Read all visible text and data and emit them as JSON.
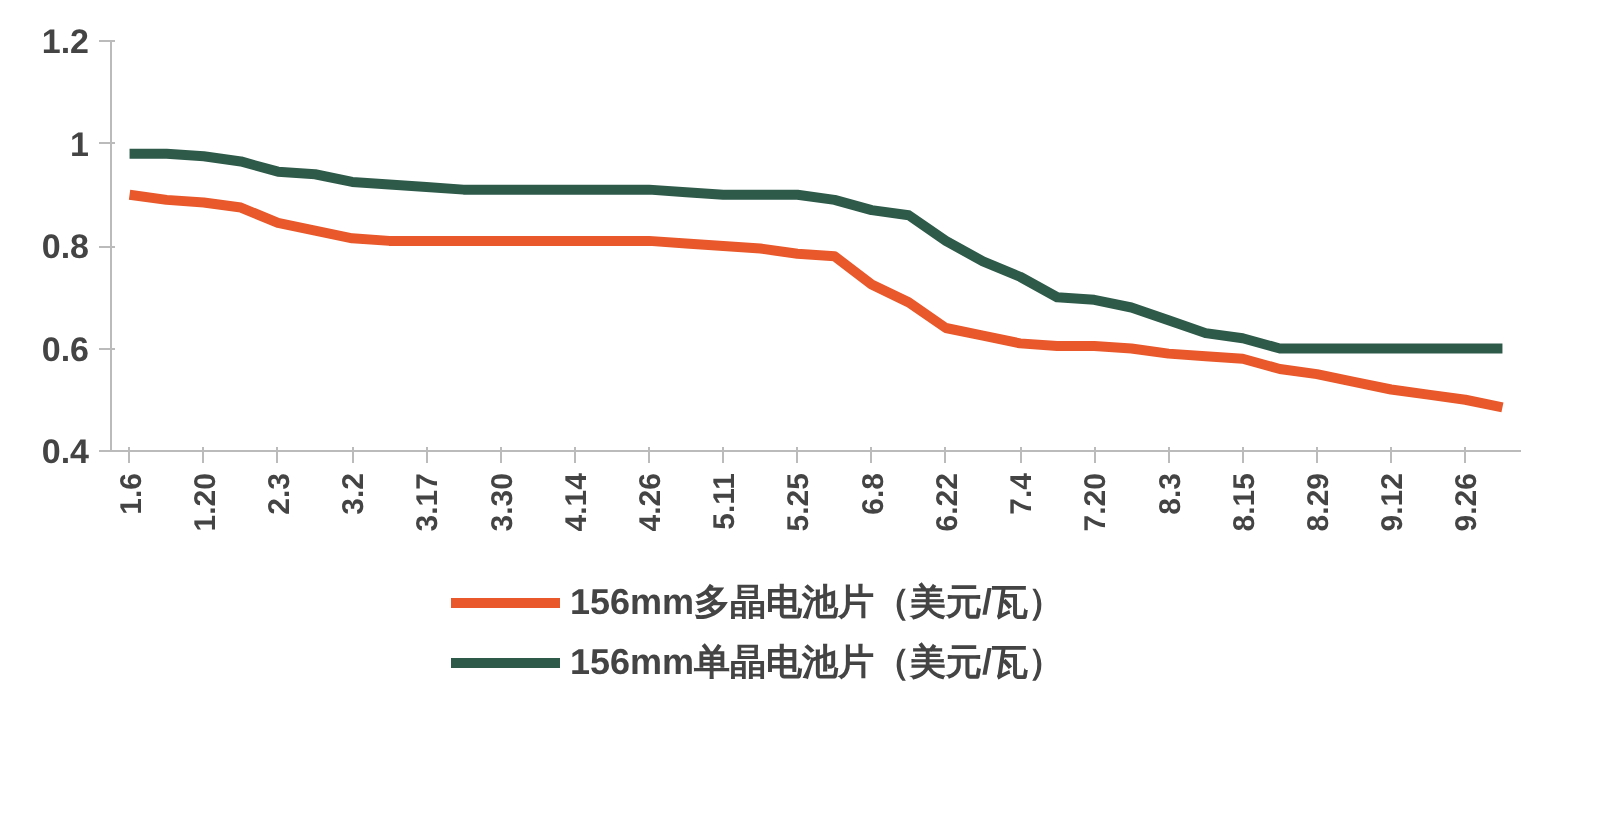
{
  "chart_data": {
    "type": "line",
    "categories": [
      "1.6",
      null,
      "1.20",
      null,
      "2.3",
      null,
      "3.2",
      null,
      "3.17",
      null,
      "3.30",
      null,
      "4.14",
      null,
      "4.26",
      null,
      "5.11",
      null,
      "5.25",
      null,
      "6.8",
      null,
      "6.22",
      null,
      "7.4",
      null,
      "7.20",
      null,
      "8.3",
      null,
      "8.15",
      null,
      "8.29",
      null,
      "9.12",
      null,
      "9.26",
      null
    ],
    "series": [
      {
        "name": "156mm多晶电池片（美元/瓦）",
        "color": "#e8582a",
        "values": [
          0.9,
          0.89,
          0.885,
          0.875,
          0.845,
          0.83,
          0.815,
          0.81,
          0.81,
          0.81,
          0.81,
          0.81,
          0.81,
          0.81,
          0.81,
          0.805,
          0.8,
          0.795,
          0.785,
          0.78,
          0.725,
          0.69,
          0.64,
          0.625,
          0.61,
          0.605,
          0.605,
          0.6,
          0.59,
          0.585,
          0.58,
          0.56,
          0.55,
          0.535,
          0.52,
          0.51,
          0.5,
          0.485
        ]
      },
      {
        "name": "156mm单晶电池片（美元/瓦）",
        "color": "#2e5a4a",
        "values": [
          0.98,
          0.98,
          0.975,
          0.965,
          0.945,
          0.94,
          0.925,
          0.92,
          0.915,
          0.91,
          0.91,
          0.91,
          0.91,
          0.91,
          0.91,
          0.905,
          0.9,
          0.9,
          0.9,
          0.89,
          0.87,
          0.86,
          0.81,
          0.77,
          0.74,
          0.7,
          0.695,
          0.68,
          0.655,
          0.63,
          0.62,
          0.6,
          0.6,
          0.6,
          0.6,
          0.6,
          0.6,
          0.6
        ]
      }
    ],
    "ylim": [
      0.4,
      1.2
    ],
    "yticks": [
      0.4,
      0.6,
      0.8,
      {
        "value": 1.0,
        "label": "1"
      },
      1.2
    ],
    "grid": false,
    "legend": "bottom",
    "line_style": "solid",
    "marker": "none"
  }
}
